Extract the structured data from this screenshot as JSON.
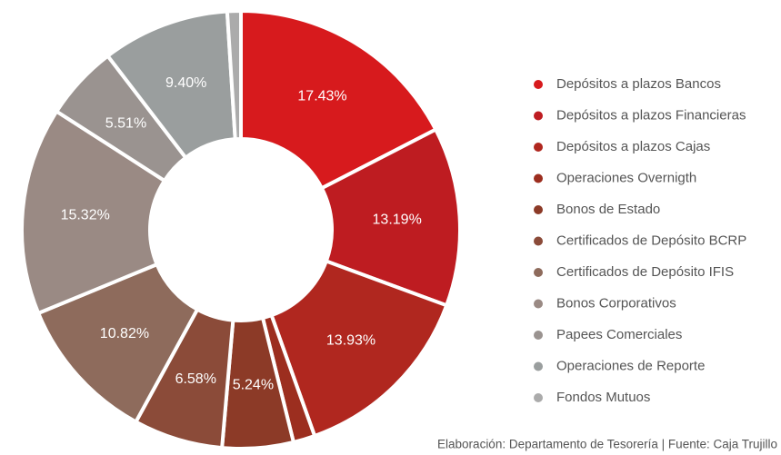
{
  "chart_data": {
    "type": "donut",
    "categories": [
      "Depósitos a plazos Bancos",
      "Depósitos a plazos Financieras",
      "Depósitos a plazos Cajas",
      "Operaciones Overnigth",
      "Bonos de Estado",
      "Certificados de Depósito BCRP",
      "Certificados de Depósito IFIS",
      "Bonos Corporativos",
      "Papees Comerciales",
      "Operaciones de Reporte",
      "Fondos Mutuos"
    ],
    "values": [
      17.43,
      13.19,
      13.93,
      1.6,
      5.24,
      6.58,
      10.82,
      15.32,
      5.51,
      9.4,
      1.0
    ],
    "value_labels": [
      "17.43%",
      "13.19%",
      "13.93%",
      null,
      "5.24%",
      "6.58%",
      "10.82%",
      "15.32%",
      "5.51%",
      "9.40%",
      null
    ],
    "colors": [
      "#d71a1d",
      "#be1c21",
      "#b0271f",
      "#9c2e1f",
      "#8c3a27",
      "#8b4b39",
      "#8e6b5c",
      "#9a8a84",
      "#9a9390",
      "#9a9e9e",
      "#ababab"
    ],
    "source": "Elaboración: Departamento de Tesorería  | Fuente: Caja Trujillo"
  }
}
